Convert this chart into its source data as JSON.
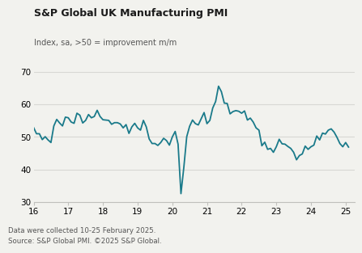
{
  "title": "S&P Global UK Manufacturing PMI",
  "subtitle": "Index, sa, >50 = improvement m/m",
  "footnote1": "Data were collected 10-25 February 2025.",
  "footnote2": "Source: S&P Global PMI. ©2025 S&P Global.",
  "line_color": "#1a7a8a",
  "background_color": "#f2f2ee",
  "grid_color": "#d8d8d4",
  "spine_color": "#c0c0bc",
  "xlim": [
    2016.0,
    2025.25
  ],
  "ylim": [
    30,
    70
  ],
  "yticks": [
    30,
    40,
    50,
    60,
    70
  ],
  "xticks": [
    16,
    17,
    18,
    19,
    20,
    21,
    22,
    23,
    24,
    25
  ],
  "data": {
    "2016-01": 52.9,
    "2016-02": 51.0,
    "2016-03": 51.0,
    "2016-04": 49.2,
    "2016-05": 50.1,
    "2016-06": 49.1,
    "2016-07": 48.3,
    "2016-08": 53.4,
    "2016-09": 55.4,
    "2016-10": 54.3,
    "2016-11": 53.4,
    "2016-12": 56.1,
    "2017-01": 55.9,
    "2017-02": 54.6,
    "2017-03": 54.2,
    "2017-04": 57.3,
    "2017-05": 56.7,
    "2017-06": 54.3,
    "2017-07": 55.1,
    "2017-08": 56.9,
    "2017-09": 55.9,
    "2017-10": 56.3,
    "2017-11": 58.2,
    "2017-12": 56.3,
    "2018-01": 55.3,
    "2018-02": 55.2,
    "2018-03": 55.1,
    "2018-04": 53.9,
    "2018-05": 54.4,
    "2018-06": 54.4,
    "2018-07": 54.0,
    "2018-08": 52.8,
    "2018-09": 53.8,
    "2018-10": 51.1,
    "2018-11": 53.1,
    "2018-12": 54.2,
    "2019-01": 52.8,
    "2019-02": 52.1,
    "2019-03": 55.1,
    "2019-04": 53.1,
    "2019-05": 49.4,
    "2019-06": 48.0,
    "2019-07": 48.0,
    "2019-08": 47.4,
    "2019-09": 48.3,
    "2019-10": 49.6,
    "2019-11": 48.9,
    "2019-12": 47.5,
    "2020-01": 50.0,
    "2020-02": 51.7,
    "2020-03": 47.8,
    "2020-04": 32.6,
    "2020-05": 40.7,
    "2020-06": 50.1,
    "2020-07": 53.3,
    "2020-08": 55.2,
    "2020-09": 54.1,
    "2020-10": 53.7,
    "2020-11": 55.6,
    "2020-12": 57.5,
    "2021-01": 54.1,
    "2021-02": 55.1,
    "2021-03": 58.9,
    "2021-04": 60.9,
    "2021-05": 65.6,
    "2021-06": 63.9,
    "2021-07": 60.4,
    "2021-08": 60.3,
    "2021-09": 57.1,
    "2021-10": 57.8,
    "2021-11": 58.1,
    "2021-12": 57.9,
    "2022-01": 57.3,
    "2022-02": 58.0,
    "2022-03": 55.2,
    "2022-04": 55.8,
    "2022-05": 54.6,
    "2022-06": 52.8,
    "2022-07": 52.1,
    "2022-08": 47.3,
    "2022-09": 48.4,
    "2022-10": 46.2,
    "2022-11": 46.5,
    "2022-12": 45.3,
    "2023-01": 47.0,
    "2023-02": 49.3,
    "2023-03": 47.9,
    "2023-04": 47.8,
    "2023-05": 47.1,
    "2023-06": 46.5,
    "2023-07": 45.3,
    "2023-08": 43.0,
    "2023-09": 44.3,
    "2023-10": 44.8,
    "2023-11": 47.2,
    "2023-12": 46.2,
    "2024-01": 47.0,
    "2024-02": 47.5,
    "2024-03": 50.3,
    "2024-04": 49.1,
    "2024-05": 51.2,
    "2024-06": 50.9,
    "2024-07": 52.1,
    "2024-08": 52.5,
    "2024-09": 51.5,
    "2024-10": 49.9,
    "2024-11": 48.0,
    "2024-12": 47.0,
    "2025-01": 48.3,
    "2025-02": 46.9
  }
}
